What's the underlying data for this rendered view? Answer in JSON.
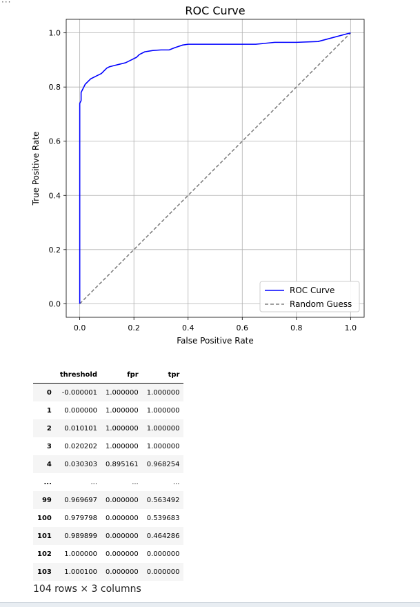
{
  "output": {
    "collapsed_indicator": "···"
  },
  "chart_data": {
    "type": "line",
    "title": "ROC Curve",
    "xlabel": "False Positive Rate",
    "ylabel": "True Positive Rate",
    "xlim": [
      -0.05,
      1.05
    ],
    "ylim": [
      -0.05,
      1.05
    ],
    "xticks": [
      "0.0",
      "0.2",
      "0.4",
      "0.6",
      "0.8",
      "1.0"
    ],
    "yticks": [
      "0.0",
      "0.2",
      "0.4",
      "0.6",
      "0.8",
      "1.0"
    ],
    "grid": true,
    "legend": "lower-right",
    "series": [
      {
        "name": "ROC Curve",
        "color": "#0000ff",
        "style": "solid",
        "points": [
          [
            0,
            0
          ],
          [
            0,
            0.74
          ],
          [
            0.005,
            0.75
          ],
          [
            0.005,
            0.78
          ],
          [
            0.01,
            0.79
          ],
          [
            0.015,
            0.8
          ],
          [
            0.02,
            0.81
          ],
          [
            0.03,
            0.82
          ],
          [
            0.04,
            0.83
          ],
          [
            0.06,
            0.84
          ],
          [
            0.08,
            0.85
          ],
          [
            0.09,
            0.86
          ],
          [
            0.1,
            0.87
          ],
          [
            0.11,
            0.875
          ],
          [
            0.13,
            0.88
          ],
          [
            0.15,
            0.885
          ],
          [
            0.17,
            0.89
          ],
          [
            0.19,
            0.9
          ],
          [
            0.21,
            0.91
          ],
          [
            0.22,
            0.92
          ],
          [
            0.24,
            0.93
          ],
          [
            0.27,
            0.935
          ],
          [
            0.3,
            0.937
          ],
          [
            0.33,
            0.937
          ],
          [
            0.35,
            0.945
          ],
          [
            0.38,
            0.955
          ],
          [
            0.4,
            0.958
          ],
          [
            0.5,
            0.958
          ],
          [
            0.65,
            0.958
          ],
          [
            0.72,
            0.965
          ],
          [
            0.8,
            0.965
          ],
          [
            0.88,
            0.968
          ],
          [
            1.0,
            1.0
          ]
        ]
      },
      {
        "name": "Random Guess",
        "color": "#808080",
        "style": "dashed",
        "points": [
          [
            0,
            0
          ],
          [
            1,
            1
          ]
        ]
      }
    ]
  },
  "table": {
    "columns": [
      "threshold",
      "fpr",
      "tpr"
    ],
    "rows": [
      [
        "0",
        "-0.000001",
        "1.000000",
        "1.000000"
      ],
      [
        "1",
        "0.000000",
        "1.000000",
        "1.000000"
      ],
      [
        "2",
        "0.010101",
        "1.000000",
        "1.000000"
      ],
      [
        "3",
        "0.020202",
        "1.000000",
        "1.000000"
      ],
      [
        "4",
        "0.030303",
        "0.895161",
        "0.968254"
      ],
      [
        "...",
        "...",
        "...",
        "..."
      ],
      [
        "99",
        "0.969697",
        "0.000000",
        "0.563492"
      ],
      [
        "100",
        "0.979798",
        "0.000000",
        "0.539683"
      ],
      [
        "101",
        "0.989899",
        "0.000000",
        "0.464286"
      ],
      [
        "102",
        "1.000000",
        "0.000000",
        "0.000000"
      ],
      [
        "103",
        "1.000100",
        "0.000000",
        "0.000000"
      ]
    ],
    "shape_text": "104 rows × 3 columns"
  }
}
